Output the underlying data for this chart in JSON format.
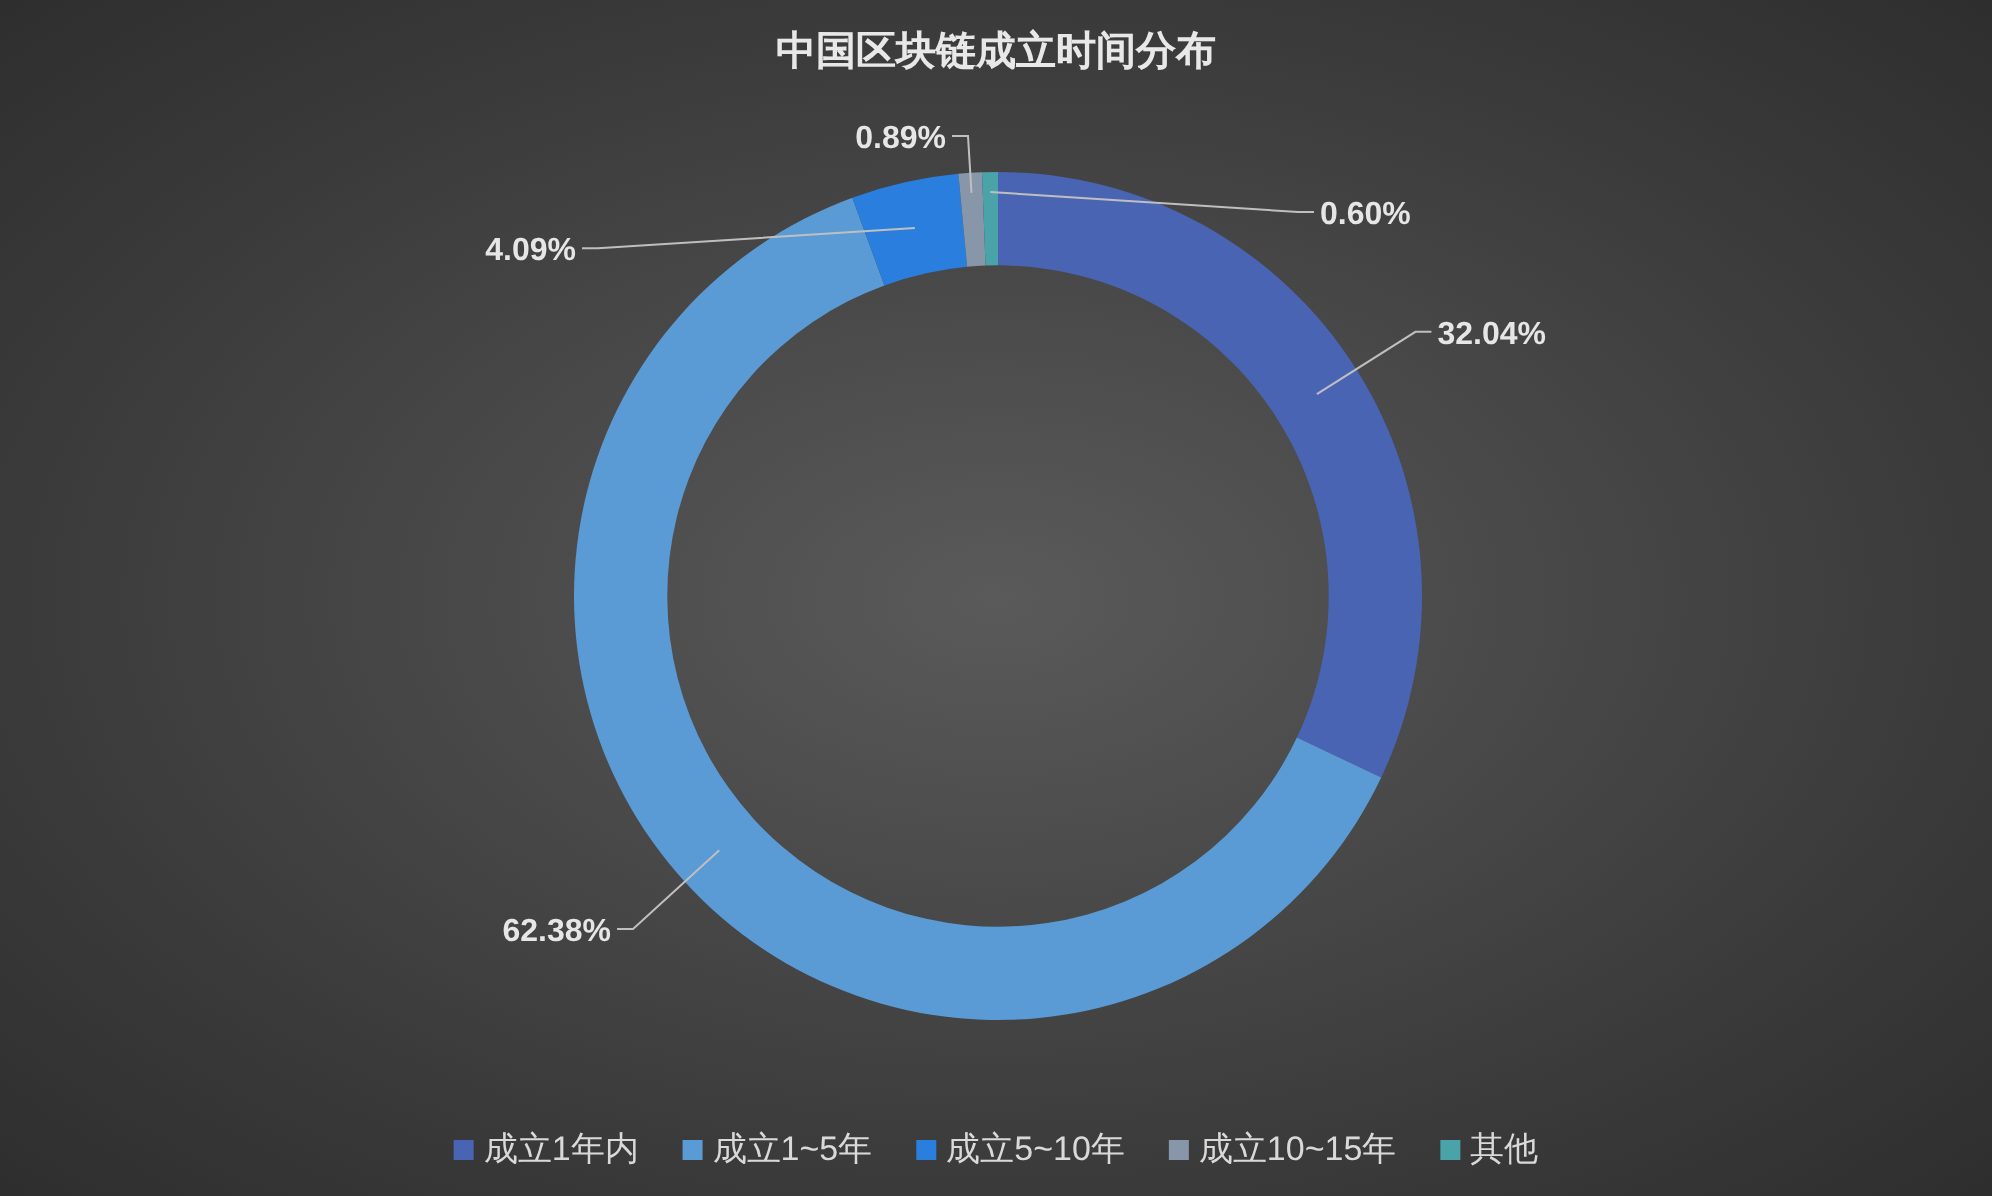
{
  "chart_data": {
    "type": "donut",
    "title": "中国区块链成立时间分布",
    "categories": [
      "成立1年内",
      "成立1~5年",
      "成立5~10年",
      "成立10~15年",
      "其他"
    ],
    "values": [
      32.04,
      62.38,
      4.09,
      0.89,
      0.6
    ],
    "value_labels": [
      "32.04%",
      "62.38%",
      "4.09%",
      "0.89%",
      "0.60%"
    ],
    "colors": [
      "#4a64b4",
      "#5b9bd5",
      "#2a7fde",
      "#8796a8",
      "#4aa3a8"
    ],
    "legend": "bottom"
  }
}
